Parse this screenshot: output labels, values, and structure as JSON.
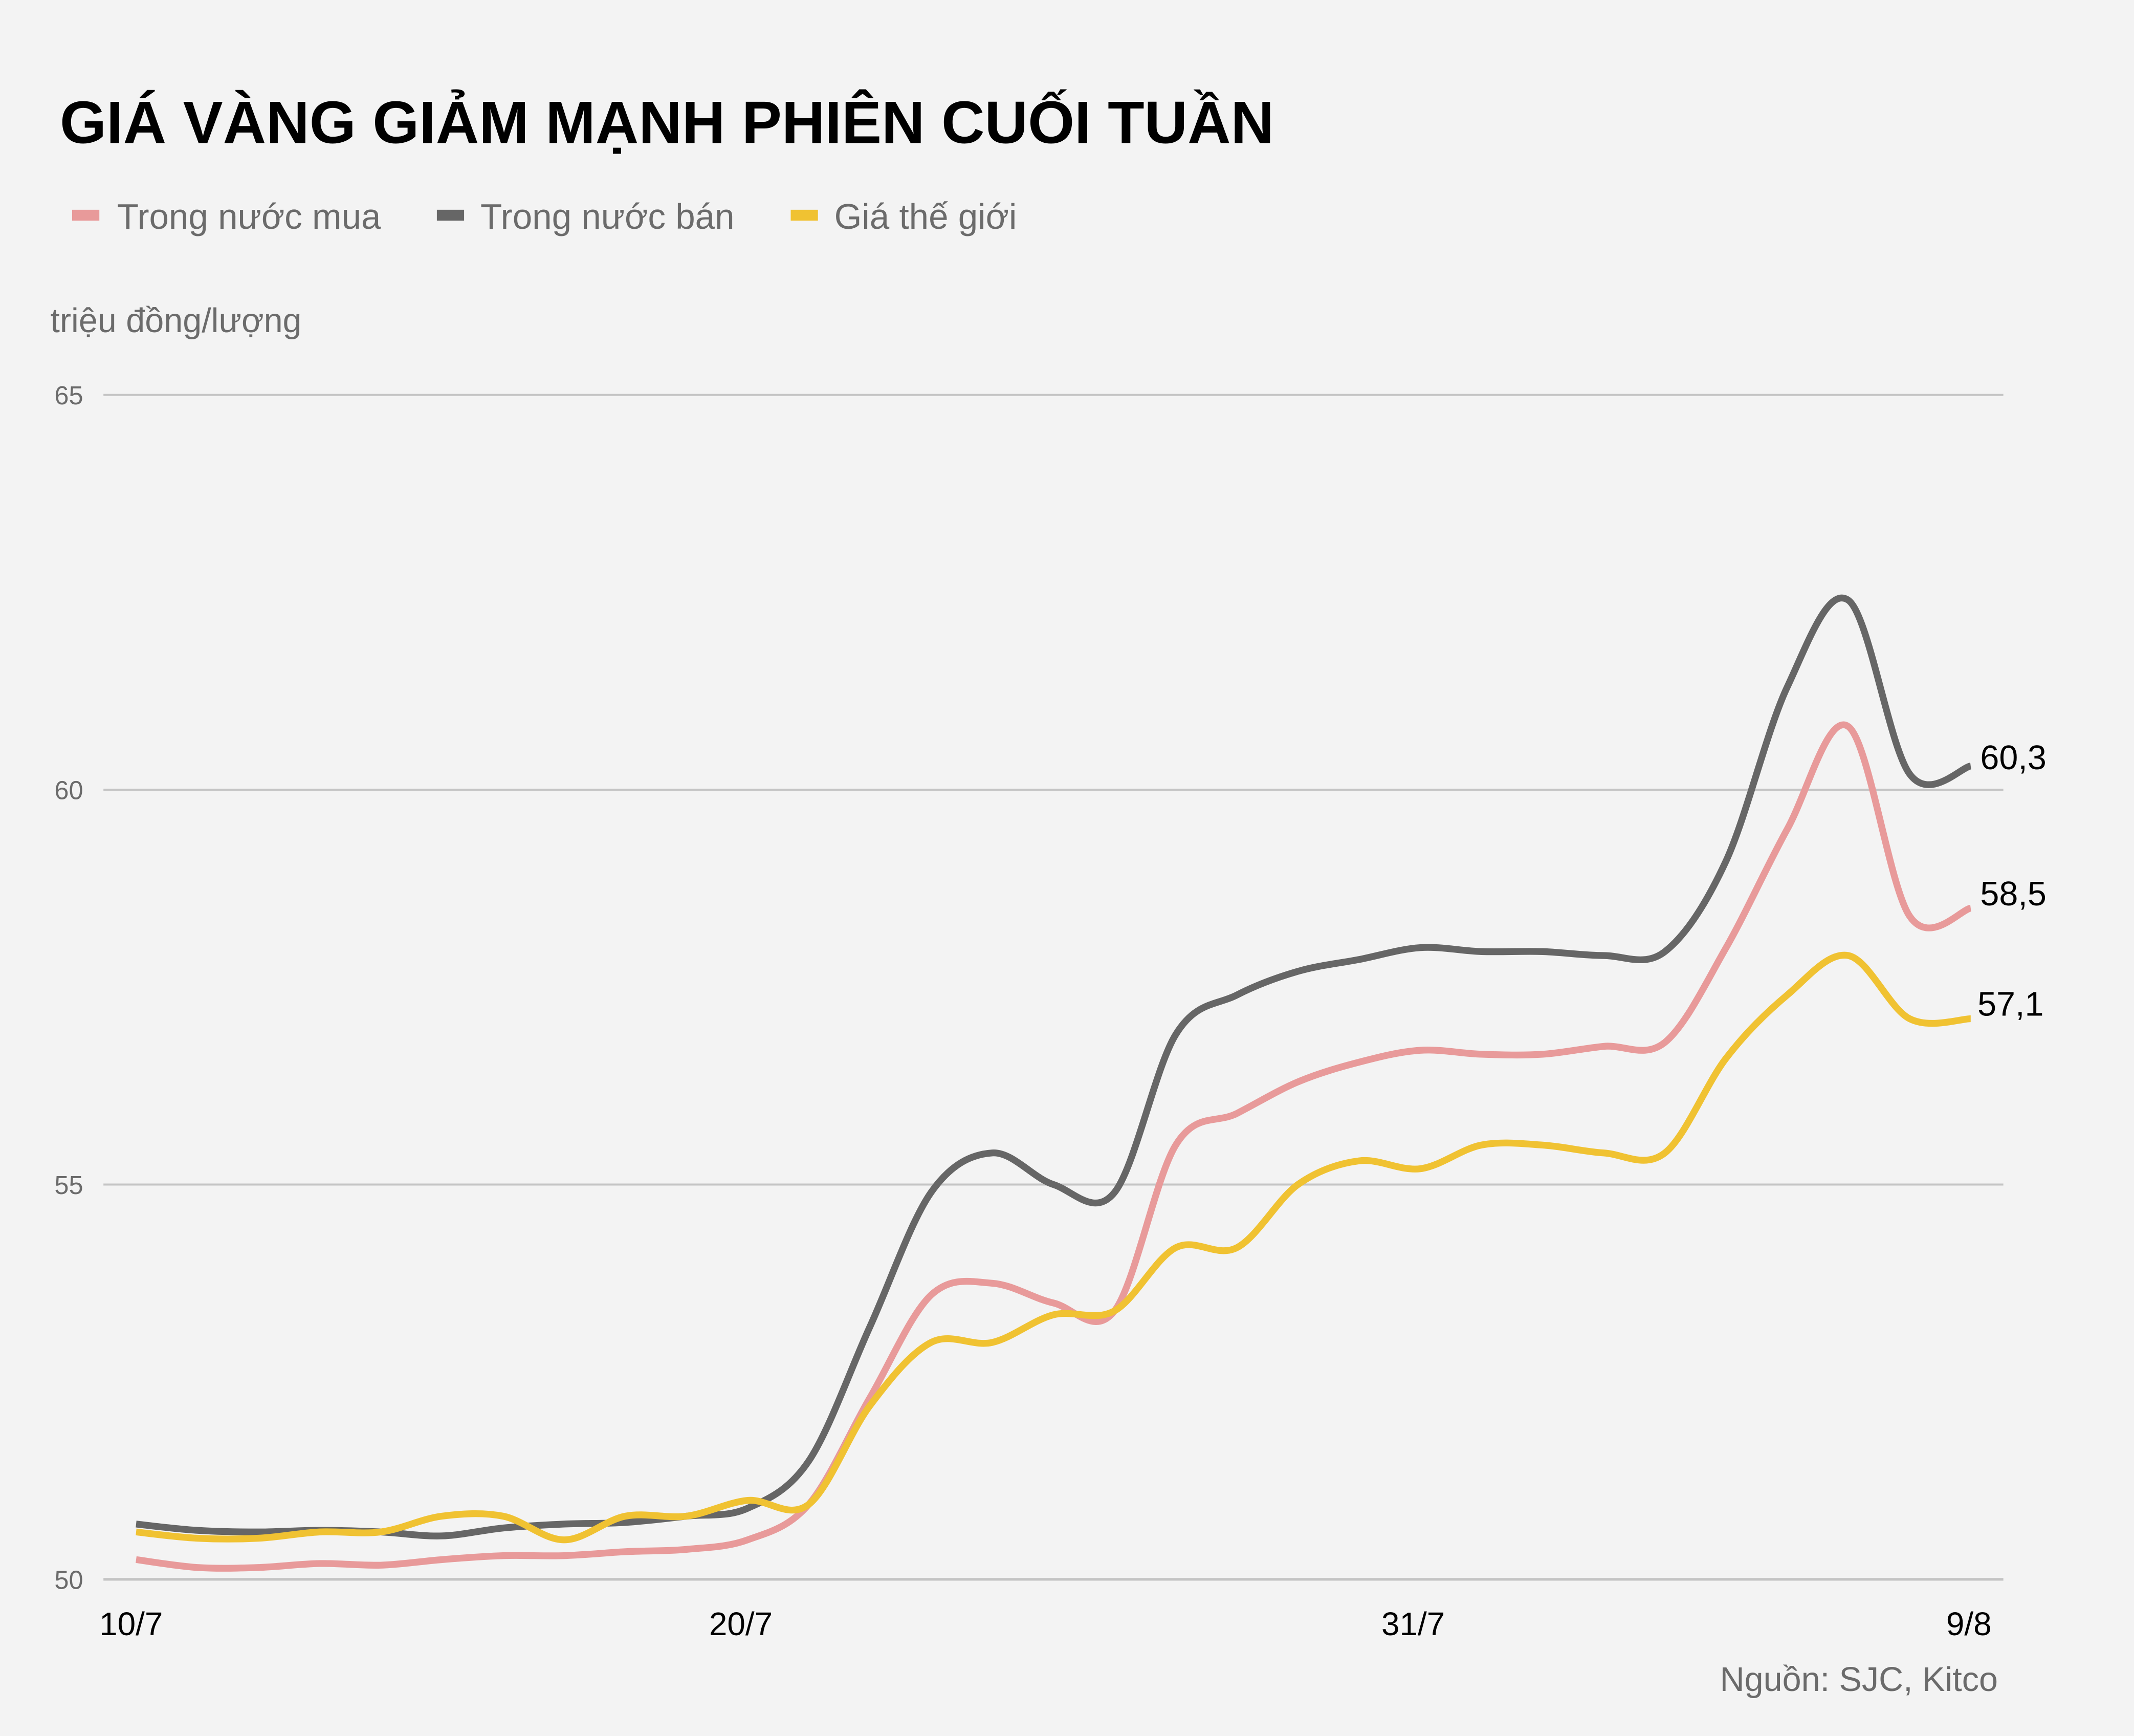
{
  "title": "GIÁ VÀNG GIẢM MẠNH PHIÊN CUỐI TUẦN",
  "legend": [
    {
      "label": "Trong nước mua",
      "color": "#e89a9a"
    },
    {
      "label": "Trong nước bán",
      "color": "#666666"
    },
    {
      "label": "Giá thế giới",
      "color": "#f0c232"
    }
  ],
  "unit_label": "triệu đồng/lượng",
  "y_ticks": [
    "65",
    "60",
    "55",
    "50"
  ],
  "x_ticks": [
    "10/7",
    "20/7",
    "31/7",
    "9/8"
  ],
  "end_labels": {
    "ban": "60,3",
    "mua": "58,5",
    "the_gioi": "57,1"
  },
  "source": "Nguồn: SJC, Kitco",
  "chart_data": {
    "type": "line",
    "title": "GIÁ VÀNG GIẢM MẠNH PHIÊN CUỐI TUẦN",
    "xlabel": "",
    "ylabel": "triệu đồng/lượng",
    "ylim": [
      50,
      65
    ],
    "yticks": [
      50,
      55,
      60,
      65
    ],
    "grid": true,
    "legend_position": "top-left",
    "x": [
      "10/7",
      "11/7",
      "12/7",
      "13/7",
      "14/7",
      "15/7",
      "16/7",
      "17/7",
      "18/7",
      "19/7",
      "20/7",
      "21/7",
      "22/7",
      "23/7",
      "24/7",
      "25/7",
      "26/7",
      "27/7",
      "28/7",
      "29/7",
      "30/7",
      "31/7",
      "1/8",
      "2/8",
      "3/8",
      "4/8",
      "5/8",
      "6/8",
      "7/8",
      "8/8",
      "9/8"
    ],
    "xtick_labels": [
      "10/7",
      "20/7",
      "31/7",
      "9/8"
    ],
    "series": [
      {
        "name": "Trong nước mua",
        "color": "#e89a9a",
        "values": [
          50.25,
          50.15,
          50.15,
          50.2,
          50.18,
          50.25,
          50.3,
          50.3,
          50.35,
          50.38,
          50.5,
          50.95,
          52.3,
          53.6,
          53.75,
          53.5,
          53.4,
          55.5,
          55.9,
          56.3,
          56.55,
          56.7,
          56.65,
          56.65,
          56.75,
          56.8,
          58.0,
          59.5,
          60.8,
          58.4,
          58.5
        ],
        "end_label": "58,5"
      },
      {
        "name": "Trong nước bán",
        "color": "#666666",
        "values": [
          50.7,
          50.62,
          50.6,
          50.62,
          50.6,
          50.55,
          50.65,
          50.7,
          50.72,
          50.8,
          50.9,
          51.5,
          53.2,
          54.9,
          55.4,
          55.0,
          54.9,
          56.9,
          57.4,
          57.7,
          57.85,
          58.0,
          57.95,
          57.95,
          57.9,
          57.95,
          59.1,
          61.3,
          62.4,
          60.2,
          60.3
        ],
        "end_label": "60,3"
      },
      {
        "name": "Giá thế giới",
        "color": "#f0c232",
        "values": [
          50.6,
          50.52,
          50.52,
          50.6,
          50.6,
          50.8,
          50.8,
          50.5,
          50.8,
          50.8,
          51.0,
          50.95,
          52.2,
          53.0,
          53.0,
          53.35,
          53.4,
          54.2,
          54.2,
          55.0,
          55.3,
          55.2,
          55.5,
          55.5,
          55.4,
          55.4,
          56.6,
          57.4,
          57.9,
          57.1,
          57.1
        ],
        "end_label": "57,1"
      }
    ],
    "annotations": [
      "Nguồn: SJC, Kitco"
    ]
  }
}
